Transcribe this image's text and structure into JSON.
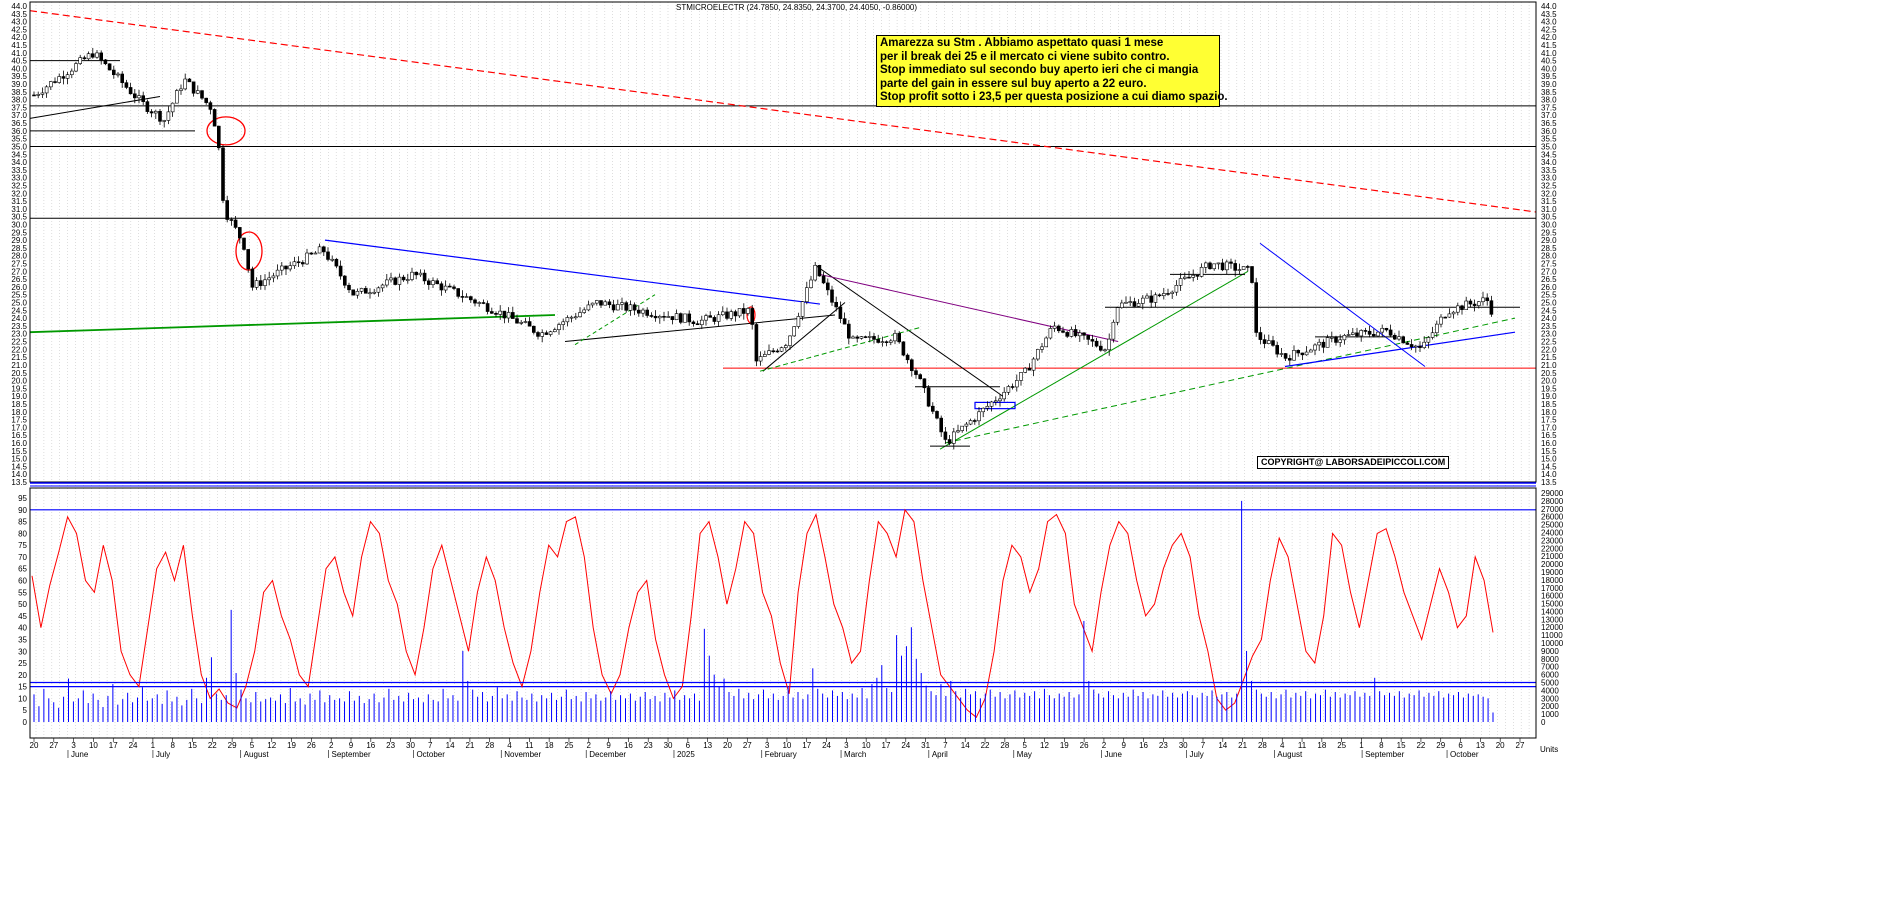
{
  "header": {
    "ticker_line": "STMICROELECTR (24.7850, 24.8350, 24.3700, 24.4050, -0.86000)"
  },
  "annotation": {
    "lines": [
      "Amarezza su Stm . Abbiamo aspettato quasi 1 mese",
      "per il break dei 25 e il mercato ci viene subito contro.",
      "Stop immediato sul secondo buy aperto ieri che ci mangia",
      "parte del gain in essere sul buy aperto a 22 euro.",
      "Stop profit sotto i 23,5 per questa posizione a cui diamo spazio."
    ]
  },
  "copyright": "COPYRIGHT@ LABORSADEIPICCOLI.COM",
  "colors": {
    "candle": "#000000",
    "trend_blue": "#0000ff",
    "trend_green": "#009900",
    "resistance_red": "#ff0000",
    "oscillator": "#ff0000",
    "volume": "#0000ff",
    "annotation_bg": "#ffff33"
  },
  "chart_data": [
    {
      "type": "candlestick",
      "title": "STMICROELECTR",
      "ylim": [
        13.5,
        44.0
      ],
      "y_ticks": [
        "44.0",
        "43.5",
        "43.0",
        "42.5",
        "42.0",
        "41.5",
        "41.0",
        "40.5",
        "40.0",
        "39.5",
        "39.0",
        "38.5",
        "38.0",
        "37.5",
        "37.0",
        "36.5",
        "36.0",
        "35.5",
        "35.0",
        "34.5",
        "34.0",
        "33.5",
        "33.0",
        "32.5",
        "32.0",
        "31.5",
        "31.0",
        "30.5",
        "30.0",
        "29.5",
        "29.0",
        "28.5",
        "28.0",
        "27.5",
        "27.0",
        "26.5",
        "26.0",
        "25.5",
        "25.0",
        "24.5",
        "24.0",
        "23.5",
        "23.0",
        "22.5",
        "22.0",
        "21.5",
        "21.0",
        "20.5",
        "20.0",
        "19.5",
        "19.0",
        "18.5",
        "18.0",
        "17.5",
        "17.0",
        "16.5",
        "16.0",
        "15.5",
        "15.0",
        "14.5",
        "14.0",
        "13.5"
      ],
      "horizontal_levels": [
        37.6,
        35.0,
        30.4
      ],
      "last_values": {
        "open": 24.785,
        "high": 24.835,
        "low": 24.37,
        "close": 24.405,
        "change": -0.86
      },
      "series_close_keypoints": [
        [
          "2024-05-20",
          38.3
        ],
        [
          "2024-06-10",
          41.0
        ],
        [
          "2024-06-27",
          37.8
        ],
        [
          "2024-07-05",
          36.7
        ],
        [
          "2024-07-12",
          39.3
        ],
        [
          "2024-07-22",
          37.4
        ],
        [
          "2024-07-25",
          34.0
        ],
        [
          "2024-07-26",
          31.0
        ],
        [
          "2024-08-02",
          28.8
        ],
        [
          "2024-08-05",
          26.0
        ],
        [
          "2024-08-15",
          27.0
        ],
        [
          "2024-08-30",
          28.4
        ],
        [
          "2024-09-10",
          25.5
        ],
        [
          "2024-10-01",
          26.8
        ],
        [
          "2024-10-30",
          24.5
        ],
        [
          "2024-11-15",
          23.0
        ],
        [
          "2024-12-05",
          25.0
        ],
        [
          "2025-01-10",
          23.8
        ],
        [
          "2025-01-28",
          24.5
        ],
        [
          "2025-01-30",
          21.2
        ],
        [
          "2025-02-10",
          22.5
        ],
        [
          "2025-02-20",
          27.2
        ],
        [
          "2025-03-05",
          22.5
        ],
        [
          "2025-03-20",
          22.8
        ],
        [
          "2025-03-28",
          20.3
        ],
        [
          "2025-04-07",
          16.0
        ],
        [
          "2025-04-22",
          18.4
        ],
        [
          "2025-05-05",
          20.5
        ],
        [
          "2025-05-15",
          23.5
        ],
        [
          "2025-06-03",
          22.0
        ],
        [
          "2025-06-06",
          24.8
        ],
        [
          "2025-06-20",
          25.3
        ],
        [
          "2025-07-10",
          27.5
        ],
        [
          "2025-07-24",
          27.0
        ],
        [
          "2025-07-25",
          23.0
        ],
        [
          "2025-08-05",
          21.5
        ],
        [
          "2025-08-25",
          22.8
        ],
        [
          "2025-09-10",
          23.2
        ],
        [
          "2025-09-22",
          22.0
        ],
        [
          "2025-10-01",
          24.5
        ],
        [
          "2025-10-15",
          25.2
        ],
        [
          "2025-10-17",
          24.4
        ]
      ]
    },
    {
      "type": "line",
      "ylim": [
        0,
        95
      ],
      "y_ticks": [
        "95",
        "90",
        "85",
        "80",
        "75",
        "70",
        "65",
        "60",
        "55",
        "50",
        "45",
        "40",
        "35",
        "30",
        "25",
        "20",
        "15",
        "10",
        "5",
        "0"
      ],
      "levels": [
        90,
        15
      ],
      "series": [
        {
          "name": "",
          "values": [
            62,
            40,
            58,
            72,
            87,
            80,
            60,
            55,
            75,
            60,
            30,
            20,
            15,
            40,
            65,
            72,
            60,
            75,
            45,
            20,
            10,
            14,
            8,
            6,
            15,
            30,
            55,
            60,
            45,
            35,
            20,
            15,
            40,
            65,
            70,
            55,
            45,
            70,
            85,
            80,
            60,
            50,
            30,
            20,
            40,
            65,
            75,
            60,
            45,
            30,
            55,
            70,
            60,
            40,
            25,
            15,
            30,
            55,
            75,
            70,
            85,
            87,
            70,
            40,
            20,
            12,
            20,
            40,
            55,
            60,
            35,
            20,
            10,
            15,
            45,
            80,
            85,
            70,
            50,
            65,
            85,
            80,
            55,
            45,
            25,
            12,
            55,
            80,
            88,
            70,
            50,
            40,
            25,
            30,
            60,
            85,
            80,
            70,
            90,
            85,
            60,
            40,
            20,
            15,
            10,
            5,
            2,
            10,
            30,
            60,
            75,
            70,
            55,
            65,
            85,
            88,
            80,
            50,
            40,
            30,
            55,
            75,
            85,
            80,
            60,
            45,
            50,
            65,
            75,
            80,
            70,
            45,
            30,
            10,
            5,
            8,
            18,
            28,
            35,
            60,
            78,
            70,
            50,
            30,
            25,
            45,
            80,
            75,
            55,
            40,
            60,
            80,
            82,
            70,
            55,
            45,
            35,
            50,
            65,
            55,
            40,
            45,
            70,
            60,
            38
          ]
        }
      ]
    },
    {
      "type": "bar",
      "ylim": [
        0,
        29000
      ],
      "y_ticks": [
        "29000",
        "28000",
        "27000",
        "26000",
        "25000",
        "24000",
        "23000",
        "22000",
        "21000",
        "20000",
        "19000",
        "18000",
        "17000",
        "16000",
        "15000",
        "14000",
        "13000",
        "12000",
        "11000",
        "10000",
        "9000",
        "8000",
        "7000",
        "6000",
        "5000",
        "4000",
        "3000",
        "2000",
        "1000",
        "0"
      ],
      "unit": "Units",
      "level": 5000,
      "values": [
        3500,
        2000,
        4200,
        3000,
        2500,
        1800,
        3200,
        5500,
        2600,
        3000,
        4000,
        2400,
        3600,
        2800,
        1900,
        3300,
        4800,
        2200,
        2900,
        3700,
        2500,
        3100,
        4400,
        2700,
        3000,
        3500,
        2300,
        4000,
        2600,
        3200,
        2100,
        2800,
        4200,
        3000,
        2400,
        5600,
        8200,
        3600,
        2800,
        3400,
        14200,
        6200,
        4100,
        3000,
        2500,
        3800,
        2600,
        2900,
        3100,
        2700,
        3500,
        2400,
        4300,
        2600,
        3000,
        2200,
        3600,
        2800,
        4000,
        2500,
        3400,
        2800,
        3000,
        2600,
        3900,
        2700,
        3300,
        2400,
        2900,
        3600,
        2500,
        3100,
        4200,
        2800,
        3300,
        2600,
        3700,
        2900,
        3100,
        2500,
        3500,
        2800,
        2600,
        4200,
        3000,
        3400,
        2700,
        9000,
        5200,
        4100,
        3200,
        3800,
        2600,
        3300,
        4400,
        3000,
        3500,
        2700,
        3900,
        3100,
        2800,
        3600,
        2600,
        3400,
        3000,
        3700,
        2800,
        3200,
        4100,
        2900,
        3300,
        2600,
        3800,
        3000,
        3500,
        2700,
        3100,
        3900,
        2800,
        3400,
        3000,
        3600,
        2700,
        3200,
        3800,
        2900,
        3300,
        2600,
        3700,
        3100,
        4000,
        2800,
        3400,
        3000,
        3600,
        2700,
        11800,
        8400,
        6000,
        4500,
        5500,
        3800,
        3300,
        4200,
        3000,
        3700,
        2900,
        3500,
        4100,
        3000,
        3600,
        2800,
        3300,
        4400,
        3100,
        3800,
        2900,
        3500,
        6800,
        4200,
        3600,
        3100,
        4000,
        3300,
        3800,
        2900,
        3600,
        3100,
        4300,
        3000,
        4800,
        5600,
        7200,
        4300,
        3800,
        11000,
        8400,
        9600,
        12000,
        8000,
        6200,
        4600,
        3900,
        3400,
        4800,
        3300,
        5200,
        3900,
        3100,
        4200,
        3500,
        3900,
        3000,
        3600,
        4100,
        3200,
        3800,
        3000,
        3500,
        4000,
        3100,
        3700,
        3300,
        3900,
        3000,
        4200,
        3400,
        3000,
        3600,
        3200,
        3800,
        3100,
        3500,
        12800,
        5200,
        4100,
        3600,
        3100,
        3900,
        3400,
        3000,
        3700,
        3200,
        4100,
        3300,
        3800,
        3000,
        3500,
        3300,
        4000,
        3200,
        3700,
        3100,
        3600,
        3900,
        3400,
        3100,
        3700,
        3300,
        4000,
        3200,
        3500,
        3800,
        3100,
        3600,
        28000,
        9000,
        5200,
        4100,
        3600,
        3200,
        3800,
        3000,
        3500,
        4100,
        3100,
        3700,
        3300,
        3900,
        3000,
        3600,
        3400,
        4100,
        3200,
        3800,
        3100,
        3600,
        3400,
        3900,
        3200,
        3700,
        3300,
        5600,
        3900,
        3400,
        3700,
        3300,
        3900,
        3100,
        3600,
        3400,
        4000,
        3200,
        3700,
        3300,
        3900,
        3100,
        3600,
        3400,
        3800,
        3100,
        3600,
        3300,
        3500,
        3200,
        3000,
        1200
      ]
    }
  ],
  "x_axis": {
    "day_labels": [
      "20",
      "27",
      "3",
      "10",
      "17",
      "24",
      "1",
      "8",
      "15",
      "22",
      "29",
      "5",
      "12",
      "19",
      "26",
      "2",
      "9",
      "16",
      "23",
      "30",
      "7",
      "14",
      "21",
      "28",
      "4",
      "11",
      "18",
      "25",
      "2",
      "9",
      "16",
      "23",
      "30",
      "6",
      "13",
      "20",
      "27",
      "3",
      "10",
      "17",
      "24",
      "3",
      "10",
      "17",
      "24",
      "31",
      "7",
      "14",
      "22",
      "28",
      "5",
      "12",
      "19",
      "26",
      "2",
      "9",
      "16",
      "23",
      "30",
      "7",
      "14",
      "21",
      "28",
      "4",
      "11",
      "18",
      "25",
      "1",
      "8",
      "15",
      "22",
      "29",
      "6",
      "13",
      "20",
      "27"
    ],
    "month_labels": [
      "June",
      "July",
      "August",
      "September",
      "October",
      "November",
      "December",
      "2025",
      "February",
      "March",
      "April",
      "May",
      "June",
      "July",
      "August",
      "September",
      "October"
    ]
  }
}
